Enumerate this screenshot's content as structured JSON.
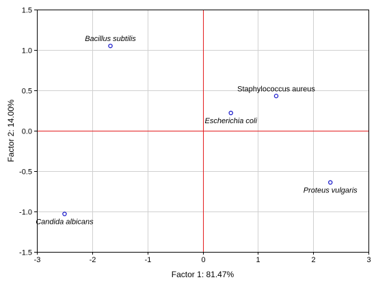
{
  "chart_data": {
    "type": "scatter",
    "title": "",
    "xlabel": "Factor 1: 81.47%",
    "ylabel": "Factor 2: 14.00%",
    "xlim": [
      -3,
      3
    ],
    "ylim": [
      -1.5,
      1.5
    ],
    "x_ticks": [
      -3,
      -2,
      -1,
      0,
      1,
      2,
      3
    ],
    "y_ticks": [
      1.5,
      1.0,
      0.5,
      0.0,
      -0.5,
      -1.0,
      -1.5
    ],
    "x_tick_labels": [
      "-3",
      "-2",
      "-1",
      "0",
      "1",
      "2",
      "3"
    ],
    "y_tick_labels": [
      "1.5",
      "1.0",
      "0.5",
      "0.0",
      "-0.5",
      "-1.0",
      "-1.5"
    ],
    "grid": true,
    "reference_lines": {
      "x": 0,
      "y": 0,
      "color": "#e31a1c"
    },
    "marker": {
      "shape": "open-circle",
      "color": "#1f1fcc"
    },
    "points": [
      {
        "label": "Bacillus subtilis",
        "x": -1.67,
        "y": 1.05,
        "italic": true,
        "label_pos": "above"
      },
      {
        "label": "Staphylococcus aureus",
        "x": 1.33,
        "y": 0.43,
        "italic": false,
        "label_pos": "above"
      },
      {
        "label": "Escherichia coli",
        "x": 0.51,
        "y": 0.22,
        "italic": true,
        "label_pos": "below"
      },
      {
        "label": "Proteus vulgaris",
        "x": 2.31,
        "y": -0.64,
        "italic": true,
        "label_pos": "below"
      },
      {
        "label": "Candida albicans",
        "x": -2.5,
        "y": -1.03,
        "italic": true,
        "label_pos": "below"
      }
    ]
  }
}
